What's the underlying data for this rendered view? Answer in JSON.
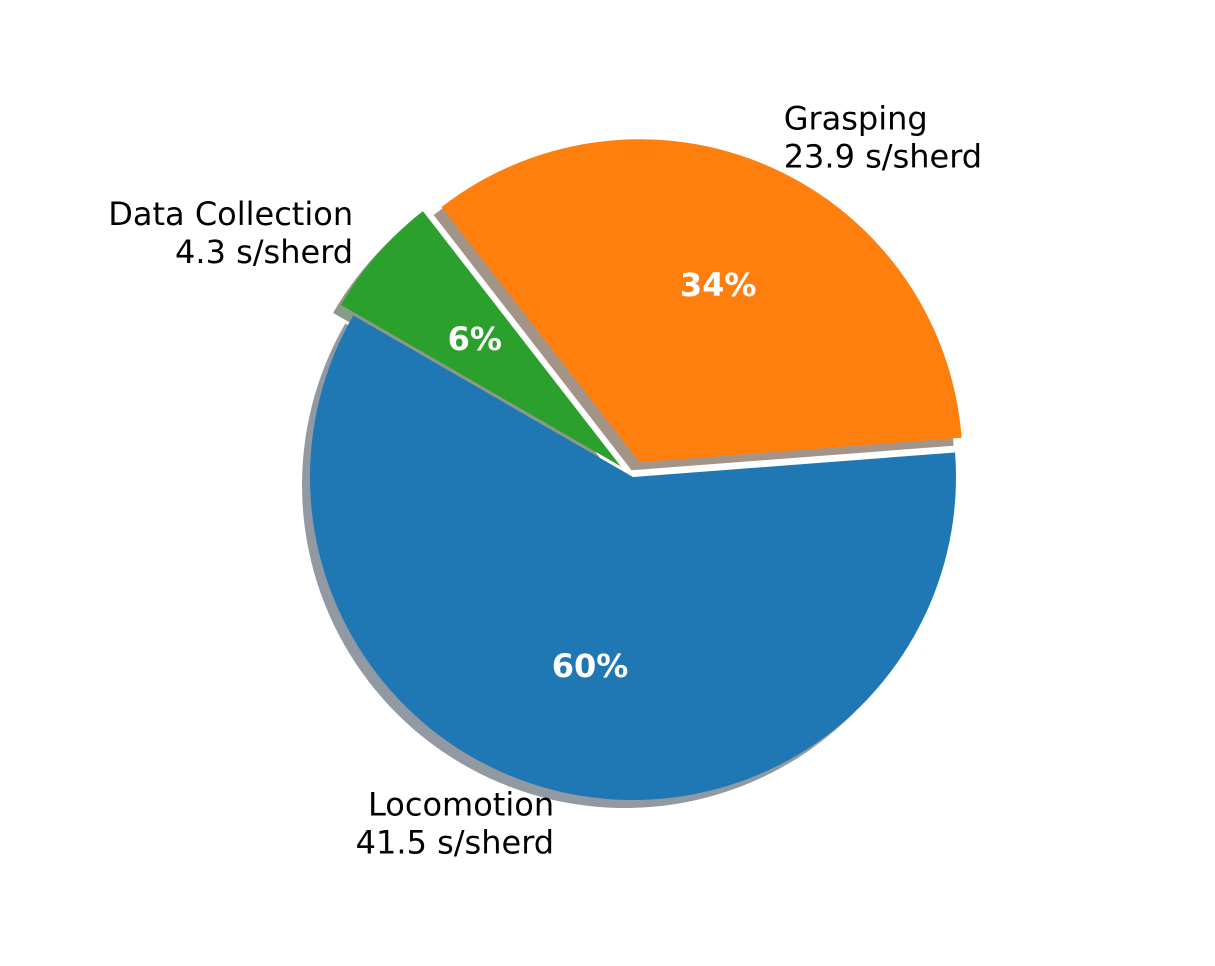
{
  "chart_data": {
    "type": "pie",
    "title": "",
    "start_angle_deg": 150,
    "direction": "counterclockwise",
    "shadow": true,
    "explode": [
      0,
      0.05,
      0.05
    ],
    "slices": [
      {
        "name": "Locomotion",
        "value": 41.5,
        "unit": "s/sherd",
        "value_label": "41.5 s/sherd",
        "percent_label": "60%",
        "color": "#1f77b4"
      },
      {
        "name": "Grasping",
        "value": 23.9,
        "unit": "s/sherd",
        "value_label": "23.9 s/sherd",
        "percent_label": "34%",
        "color": "#ff7f0e"
      },
      {
        "name": "Data Collection",
        "value": 4.3,
        "unit": "s/sherd",
        "value_label": "4.3 s/sherd",
        "percent_label": "6%",
        "color": "#2ca02c"
      }
    ]
  }
}
